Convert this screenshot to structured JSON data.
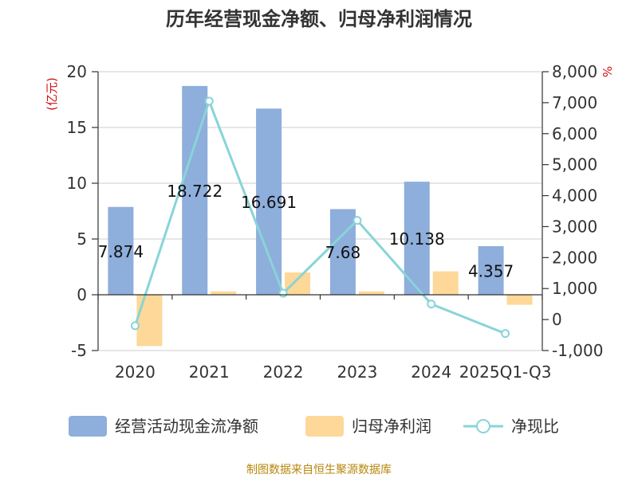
{
  "chart_data": {
    "type": "bar",
    "title": "历年经营现金净额、归母净利润情况",
    "categories": [
      "2020",
      "2021",
      "2022",
      "2023",
      "2024",
      "2025Q1-Q3"
    ],
    "series": [
      {
        "name": "经营活动现金流净额",
        "type": "bar",
        "axis": "left",
        "color": "#8eaedb",
        "values": [
          7.874,
          18.722,
          16.691,
          7.68,
          10.138,
          4.357
        ],
        "labels": [
          "7.874",
          "18.722",
          "16.691",
          "7.68",
          "10.138",
          "4.357"
        ]
      },
      {
        "name": "归母净利润",
        "type": "bar",
        "axis": "left",
        "color": "#fdd898",
        "values": [
          -4.6,
          0.3,
          2.0,
          0.3,
          2.1,
          -0.9
        ]
      },
      {
        "name": "净现比",
        "type": "line",
        "axis": "right",
        "color": "#88d4d8",
        "values": [
          -200,
          7050,
          850,
          3200,
          500,
          -450
        ]
      }
    ],
    "y_left": {
      "unit": "(亿元)",
      "min": -5,
      "max": 20,
      "ticks": [
        -5,
        0,
        5,
        10,
        15,
        20
      ]
    },
    "y_right": {
      "unit": "%",
      "min": -1000,
      "max": 8000,
      "ticks": [
        -1000,
        0,
        1000,
        2000,
        3000,
        4000,
        5000,
        6000,
        7000,
        8000
      ],
      "tick_labels": [
        "-1,000",
        "0",
        "1,000",
        "2,000",
        "3,000",
        "4,000",
        "5,000",
        "6,000",
        "7,000",
        "8,000"
      ]
    },
    "grid": true,
    "legend": "bottom",
    "source": "制图数据来自恒生聚源数据库"
  }
}
